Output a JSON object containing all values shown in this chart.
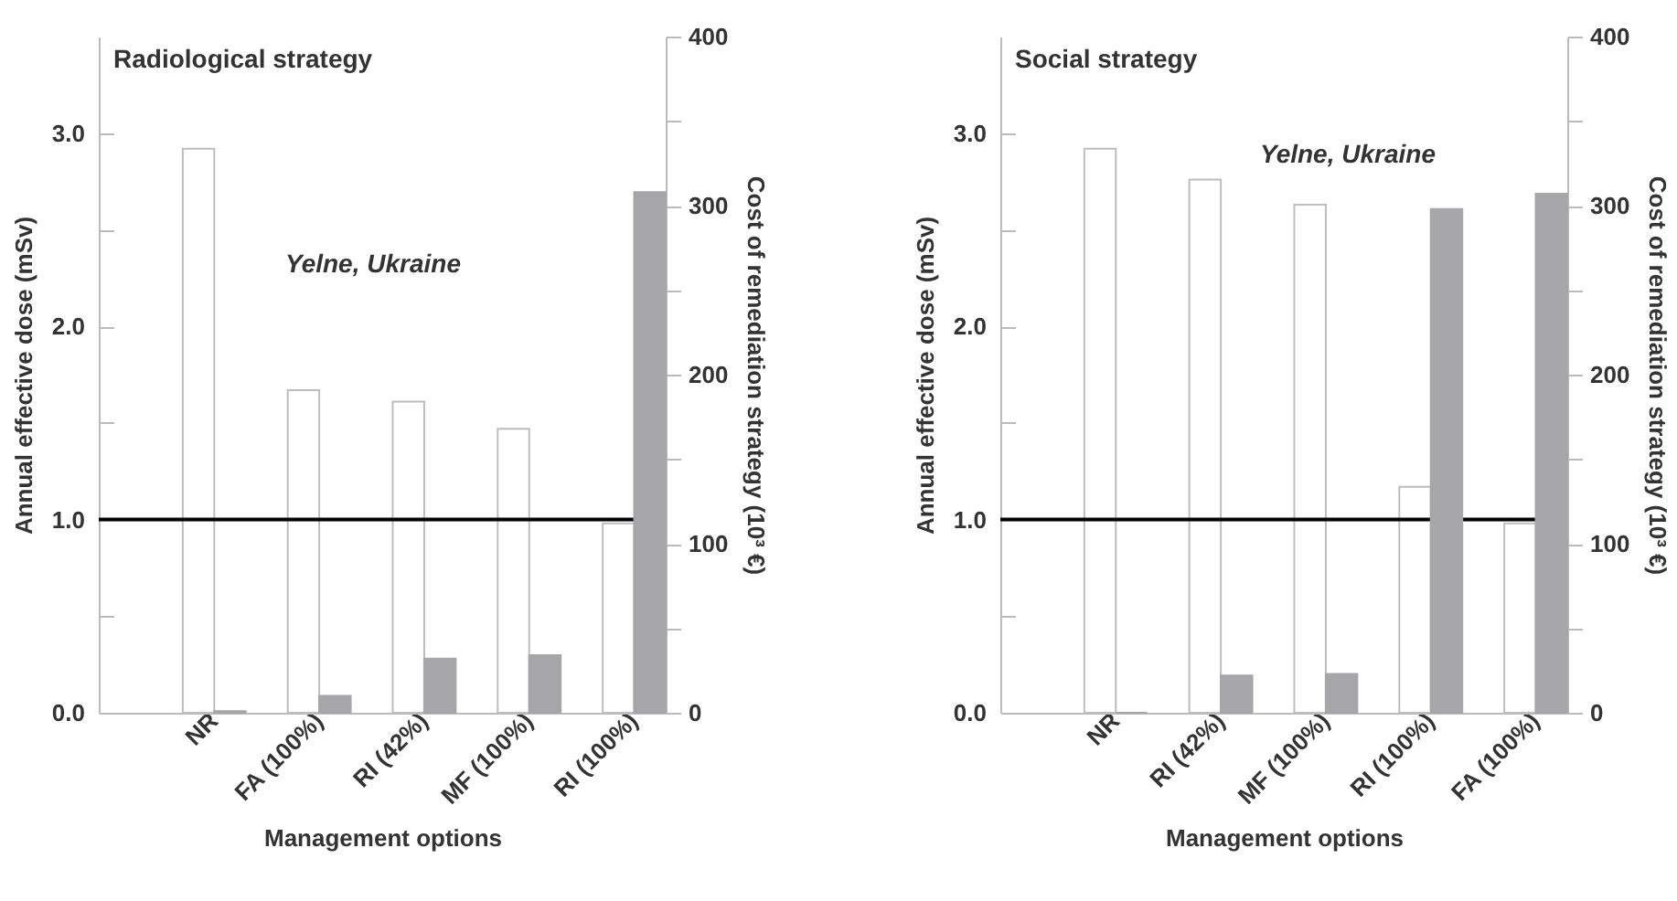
{
  "chart_data": [
    {
      "type": "bar",
      "title": "Radiological strategy",
      "categories": [
        "NR",
        "FA (100%)",
        "RI (42%)",
        "MF (100%)",
        "RI (100%)"
      ],
      "xlabel": "Management options",
      "ylabel": "Annual effective dose (mSv)",
      "y2label": "Cost of remediation strategy (10³ €)",
      "annotations": [
        "Yelne, Ukraine"
      ],
      "series": [
        {
          "color": "#ffffff",
          "values": [
            2.92,
            1.67,
            1.61,
            1.47,
            0.98
          ]
        },
        {
          "color": "#a6a6a8",
          "axis": "y2",
          "values": [
            1,
            10,
            32,
            34,
            308
          ]
        }
      ],
      "ylim": [
        0,
        3.5
      ],
      "yticks": [
        {
          "value": 0,
          "label": "0.0"
        },
        {
          "value": 0.5,
          "label": null
        },
        {
          "value": 1,
          "label": "1.0"
        },
        {
          "value": 1.5,
          "label": null
        },
        {
          "value": 2,
          "label": "2.0"
        },
        {
          "value": 2.5,
          "label": null
        },
        {
          "value": 3,
          "label": "3.0"
        }
      ],
      "y2lim": [
        0,
        400
      ],
      "y2ticks": [
        0,
        {
          "value": 50,
          "label": null
        },
        100,
        {
          "value": 150,
          "label": null
        },
        200,
        {
          "value": 250,
          "label": null
        },
        300,
        {
          "value": 350,
          "label": null
        },
        400
      ],
      "ref_lines": [
        {
          "axis": "y",
          "value": 1,
          "color": "#000000"
        }
      ],
      "grid": false
    },
    {
      "type": "bar",
      "title": "Social strategy",
      "categories": [
        "NR",
        "RI (42%)",
        "MF (100%)",
        "RI (100%)",
        "FA (100%)"
      ],
      "xlabel": "Management options",
      "ylabel": "Annual effective dose (mSv)",
      "y2label": "Cost of remediation strategy (10³ €)",
      "annotations": [
        "Yelne, Ukraine"
      ],
      "series": [
        {
          "color": "#ffffff",
          "values": [
            2.92,
            2.76,
            2.63,
            1.17,
            0.98
          ]
        },
        {
          "color": "#a6a6a8",
          "axis": "y2",
          "values": [
            0,
            22,
            23,
            298,
            307
          ]
        }
      ],
      "ylim": [
        0,
        3.5
      ],
      "yticks": [
        {
          "value": 0,
          "label": "0.0"
        },
        {
          "value": 0.5,
          "label": null
        },
        {
          "value": 1,
          "label": "1.0"
        },
        {
          "value": 1.5,
          "label": null
        },
        {
          "value": 2,
          "label": "2.0"
        },
        {
          "value": 2.5,
          "label": null
        },
        {
          "value": 3,
          "label": "3.0"
        }
      ],
      "y2lim": [
        0,
        400
      ],
      "y2ticks": [
        0,
        {
          "value": 50,
          "label": null
        },
        100,
        {
          "value": 150,
          "label": null
        },
        200,
        {
          "value": 250,
          "label": null
        },
        300,
        {
          "value": 350,
          "label": null
        },
        400
      ],
      "ref_lines": [
        {
          "axis": "y",
          "value": 1,
          "color": "#000000"
        }
      ],
      "grid": false
    }
  ]
}
